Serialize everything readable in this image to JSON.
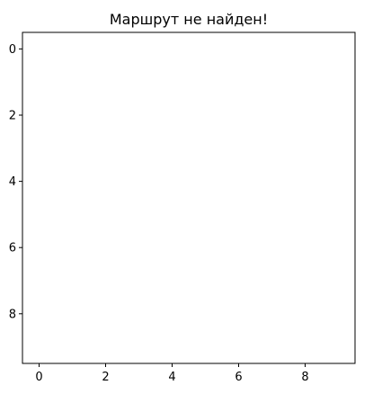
{
  "chart_data": {
    "type": "heatmap",
    "title": "Маршрут не найден!",
    "xlabel": "",
    "ylabel": "",
    "xlim": [
      -0.5,
      9.5
    ],
    "ylim": [
      9.5,
      -0.5
    ],
    "y_inverted": true,
    "x_ticks": [
      0,
      2,
      4,
      6,
      8
    ],
    "y_ticks": [
      0,
      2,
      4,
      6,
      8
    ],
    "x_tick_labels": [
      "0",
      "2",
      "4",
      "6",
      "8"
    ],
    "y_tick_labels": [
      "0",
      "2",
      "4",
      "6",
      "8"
    ],
    "grid": false,
    "values": [],
    "colors": {
      "background": "#ffffff",
      "axis": "#000000"
    }
  }
}
